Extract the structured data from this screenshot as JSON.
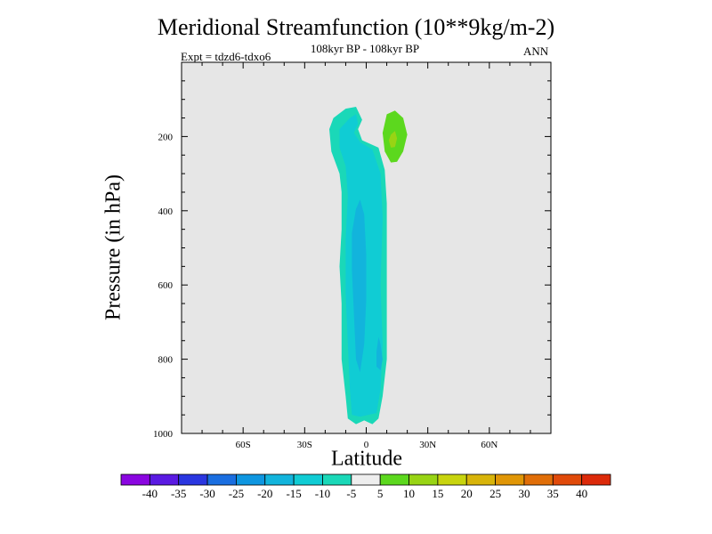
{
  "chart_data": {
    "type": "contour",
    "title": "Meridional Streamfunction (10**9kg/m-2)",
    "subtitle": "108kyr BP - 108kyr BP",
    "experiment_label": "Expt = tdzd6-tdxo6",
    "season_label": "ANN",
    "xlabel": "Latitude",
    "ylabel": "Pressure (in hPa)",
    "xlim": [
      -90,
      90
    ],
    "ylim": [
      1000,
      0
    ],
    "x_ticks": [
      {
        "value": -60,
        "label": "60S"
      },
      {
        "value": -30,
        "label": "30S"
      },
      {
        "value": 0,
        "label": "0"
      },
      {
        "value": 30,
        "label": "30N"
      },
      {
        "value": 60,
        "label": "60N"
      }
    ],
    "y_ticks": [
      {
        "value": 200,
        "label": "200"
      },
      {
        "value": 400,
        "label": "400"
      },
      {
        "value": 600,
        "label": "600"
      },
      {
        "value": 800,
        "label": "800"
      },
      {
        "value": 1000,
        "label": "1000"
      }
    ],
    "background_color": "#e6e6e6",
    "colorbar": {
      "levels": [
        "-40",
        "-35",
        "-30",
        "-25",
        "-20",
        "-15",
        "-10",
        "-5",
        "5",
        "10",
        "15",
        "20",
        "25",
        "30",
        "35",
        "40"
      ],
      "colors": [
        "#8a06e0",
        "#5a1ae2",
        "#2a36e0",
        "#1a6ee0",
        "#0e96e0",
        "#12b4dc",
        "#10ccd4",
        "#1ad8b8",
        "#eeeeee",
        "#5cd81e",
        "#98d414",
        "#c8d40e",
        "#d8b40a",
        "#e09606",
        "#e06e08",
        "#e04a0a",
        "#dc2a0a"
      ]
    },
    "features": [
      {
        "name": "negative cell (-10 to -5)",
        "lat_range": [
          -15,
          10
        ],
        "p_range": [
          120,
          980
        ],
        "value_range": [
          -10,
          -5
        ],
        "color": "#1ad8b8"
      },
      {
        "name": "negative cell (-15 to -10)",
        "lat_range": [
          -10,
          10
        ],
        "p_range": [
          180,
          960
        ],
        "value_range": [
          -15,
          -10
        ],
        "color": "#10ccd4"
      },
      {
        "name": "negative cell core (-20 to -15)",
        "lat_range": [
          -7,
          0
        ],
        "p_range": [
          360,
          840
        ],
        "value_range": [
          -20,
          -15
        ],
        "color": "#12b4dc"
      },
      {
        "name": "negative cell core (-20 to -15) lower",
        "lat_range": [
          5,
          8
        ],
        "p_range": [
          740,
          830
        ],
        "value_range": [
          -20,
          -15
        ],
        "color": "#12b4dc"
      },
      {
        "name": "positive cell (5 to 10)",
        "lat_range": [
          8,
          20
        ],
        "p_range": [
          130,
          270
        ],
        "value_range": [
          5,
          10
        ],
        "color": "#5cd81e"
      },
      {
        "name": "positive cell core (10 to 15)",
        "lat_range": [
          11,
          15
        ],
        "p_range": [
          185,
          230
        ],
        "value_range": [
          10,
          15
        ],
        "color": "#98d414"
      }
    ]
  }
}
